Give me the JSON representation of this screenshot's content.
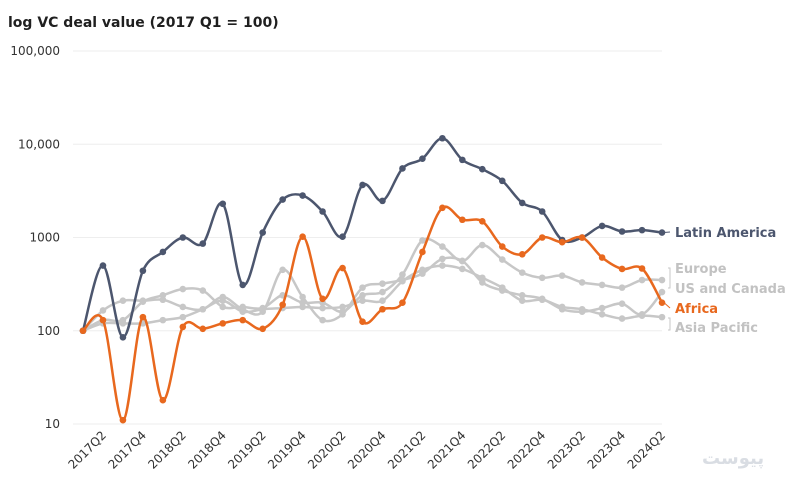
{
  "chart_data": {
    "type": "line",
    "title": "log VC deal value (2017 Q1 = 100)",
    "yscale": "log",
    "ylim": [
      10,
      100000
    ],
    "yticks": [
      {
        "value": 10,
        "label": "10"
      },
      {
        "value": 100,
        "label": "100"
      },
      {
        "value": 1000,
        "label": "1000"
      },
      {
        "value": 10000,
        "label": "10,000"
      },
      {
        "value": 100000,
        "label": "100,000"
      }
    ],
    "x": [
      "2017Q1",
      "2017Q2",
      "2017Q3",
      "2017Q4",
      "2018Q1",
      "2018Q2",
      "2018Q3",
      "2018Q4",
      "2019Q1",
      "2019Q2",
      "2019Q3",
      "2019Q4",
      "2020Q1",
      "2020Q2",
      "2020Q3",
      "2020Q4",
      "2021Q1",
      "2021Q2",
      "2021Q3",
      "2021Q4",
      "2022Q1",
      "2022Q2",
      "2022Q3",
      "2022Q4",
      "2023Q1",
      "2023Q2",
      "2023Q3",
      "2023Q4",
      "2024Q1",
      "2024Q2"
    ],
    "xtick_labels": [
      "2017Q2",
      "2017Q4",
      "2018Q2",
      "2018Q4",
      "2019Q2",
      "2019Q4",
      "2020Q2",
      "2020Q4",
      "2021Q2",
      "2021Q4",
      "2022Q2",
      "2022Q4",
      "2023Q2",
      "2023Q4",
      "2024Q2"
    ],
    "grid": true,
    "legend": "direct labels at line ends (right)",
    "series": [
      {
        "name": "Latin America",
        "color": "#4c566e",
        "values": [
          100,
          500,
          85,
          440,
          700,
          1000,
          860,
          2300,
          310,
          1130,
          2550,
          2820,
          1900,
          1020,
          3660,
          2470,
          5500,
          7000,
          11600,
          6800,
          5400,
          4050,
          2350,
          1900,
          940,
          1000,
          1330,
          1160,
          1200,
          1130
        ]
      },
      {
        "name": "Europe",
        "color": "#c7c7c7",
        "values": [
          100,
          130,
          130,
          205,
          240,
          280,
          270,
          180,
          180,
          175,
          240,
          200,
          200,
          160,
          240,
          260,
          400,
          930,
          800,
          560,
          830,
          580,
          420,
          370,
          390,
          330,
          310,
          290,
          350,
          350
        ]
      },
      {
        "name": "US and Canada",
        "color": "#c7c7c7",
        "values": [
          100,
          165,
          210,
          210,
          215,
          180,
          170,
          230,
          170,
          160,
          450,
          230,
          130,
          150,
          290,
          320,
          350,
          410,
          590,
          560,
          330,
          270,
          240,
          220,
          170,
          160,
          175,
          195,
          150,
          260
        ]
      },
      {
        "name": "Africa",
        "color": "#e8681e",
        "values": [
          100,
          130,
          11,
          140,
          18,
          110,
          105,
          120,
          130,
          105,
          190,
          1020,
          220,
          470,
          125,
          170,
          200,
          700,
          2080,
          1550,
          1490,
          800,
          660,
          1000,
          890,
          1000,
          610,
          460,
          465,
          200
        ]
      },
      {
        "name": "Asia Pacific",
        "color": "#c7c7c7",
        "values": [
          100,
          120,
          120,
          120,
          130,
          140,
          170,
          210,
          160,
          170,
          175,
          180,
          175,
          180,
          210,
          210,
          340,
          450,
          500,
          460,
          370,
          290,
          210,
          215,
          180,
          170,
          150,
          135,
          145,
          140
        ]
      }
    ]
  },
  "watermark": "پیوست"
}
